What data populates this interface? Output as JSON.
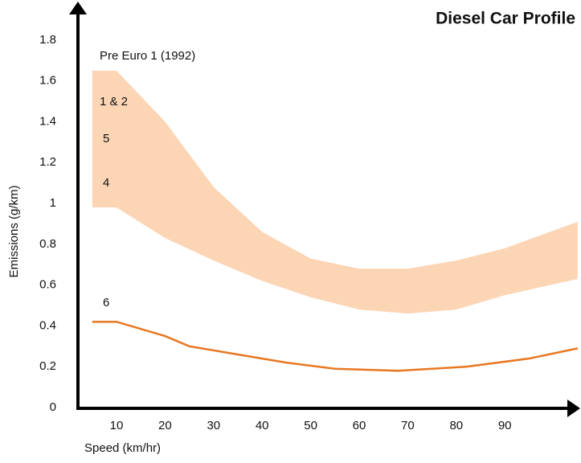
{
  "chart_data": {
    "type": "line",
    "title": "Diesel Car Profile",
    "xlabel": "Speed (km/hr)",
    "ylabel": "Emissions (g/km)",
    "annotations": [
      "Pre Euro 1 (1992)",
      "1 & 2",
      "5",
      "4",
      "6"
    ],
    "xlim": [
      2,
      105
    ],
    "ylim": [
      0,
      2
    ],
    "xticks": [
      10,
      20,
      30,
      40,
      50,
      60,
      70,
      80,
      90
    ],
    "yticks": [
      0,
      0.2,
      0.4,
      0.6,
      0.8,
      1,
      1.2,
      1.4,
      1.6,
      1.8
    ],
    "series": [
      {
        "color": "#fcd5b5",
        "x": [
          5,
          10,
          20,
          30,
          40,
          50,
          60,
          70,
          80,
          90,
          105
        ],
        "upper": [
          1.65,
          1.65,
          1.4,
          1.08,
          0.86,
          0.73,
          0.68,
          0.68,
          0.72,
          0.78,
          0.91
        ],
        "lower": [
          0.98,
          0.98,
          0.83,
          0.72,
          0.62,
          0.54,
          0.48,
          0.46,
          0.48,
          0.55,
          0.63
        ]
      },
      {
        "color": "#e87722",
        "x": [
          5,
          10,
          20,
          25,
          35,
          45,
          55,
          68,
          82,
          95,
          105
        ],
        "values": [
          0.42,
          0.42,
          0.35,
          0.3,
          0.26,
          0.22,
          0.19,
          0.18,
          0.2,
          0.24,
          0.29
        ]
      }
    ]
  }
}
